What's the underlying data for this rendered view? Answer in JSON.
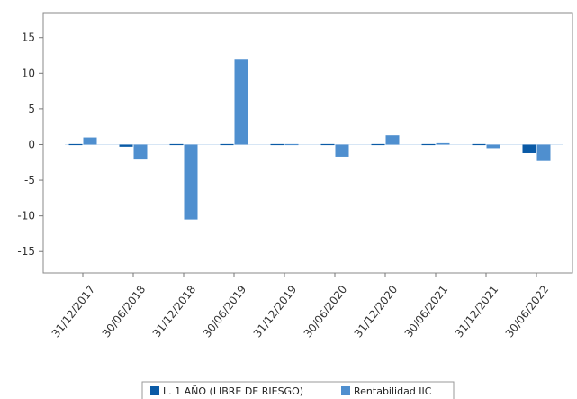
{
  "chart_data": {
    "type": "bar",
    "categories": [
      "31/12/2017",
      "30/06/2018",
      "31/12/2018",
      "30/06/2019",
      "31/12/2019",
      "30/06/2020",
      "31/12/2020",
      "30/06/2021",
      "31/12/2021",
      "30/06/2022"
    ],
    "series": [
      {
        "name": "L. 1 AÑO (LIBRE DE RIESGO)",
        "color": "#0a5aa6",
        "values": [
          0.1,
          -0.3,
          0.0,
          0.0,
          -0.1,
          -0.1,
          -0.1,
          -0.1,
          0.0,
          -1.2
        ]
      },
      {
        "name": "Rentabilidad IIC",
        "color": "#4f8fcf",
        "values": [
          1.0,
          -2.1,
          -10.5,
          11.9,
          0.1,
          -1.7,
          1.3,
          0.2,
          -0.5,
          -2.3
        ]
      }
    ],
    "ylim": [
      -18,
      18.5
    ],
    "yticks": [
      -15,
      -10,
      -5,
      0,
      5,
      10,
      15
    ],
    "grid": false,
    "legend_position": "bottom"
  }
}
